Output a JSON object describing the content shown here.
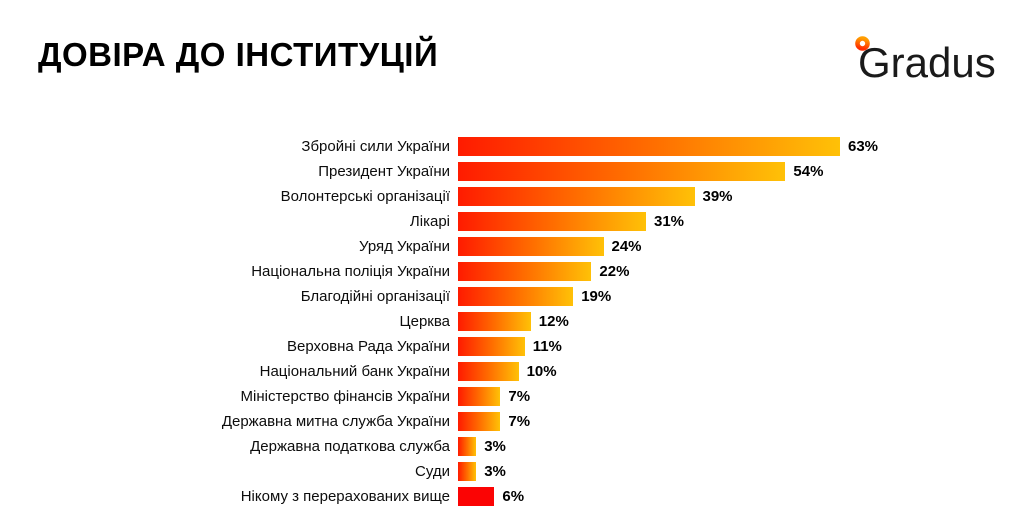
{
  "header": {
    "title": "ДОВІРА ДО ІНСТИТУЦІЙ",
    "logo": {
      "text": "Gradus",
      "degree_gradient_top": "#ff9e00",
      "degree_gradient_bottom": "#ff2d00",
      "text_color": "#1a1a1a"
    }
  },
  "chart_data": {
    "type": "bar",
    "orientation": "horizontal",
    "title": "ДОВІРА ДО ІНСТИТУЦІЙ",
    "xlabel": "",
    "ylabel": "",
    "xlim": [
      0,
      63
    ],
    "grid": false,
    "legend": false,
    "value_suffix": "%",
    "categories": [
      "Збройні сили України",
      "Президент України",
      "Волонтерські організації",
      "Лікарі",
      "Уряд України",
      "Національна поліція України",
      "Благодійні організації",
      "Церква",
      "Верховна Рада України",
      "Національний банк України",
      "Міністерство фінансів України",
      "Державна митна служба України",
      "Державна податкова служба",
      "Суди",
      "Нікому з перерахованих вище"
    ],
    "values": [
      63,
      54,
      39,
      31,
      24,
      22,
      19,
      12,
      11,
      10,
      7,
      7,
      3,
      3,
      6
    ],
    "bar_gradient": [
      "#ff1b00",
      "#ff6c00",
      "#ffc107"
    ],
    "last_bar_solid_color": "#fb0404"
  }
}
